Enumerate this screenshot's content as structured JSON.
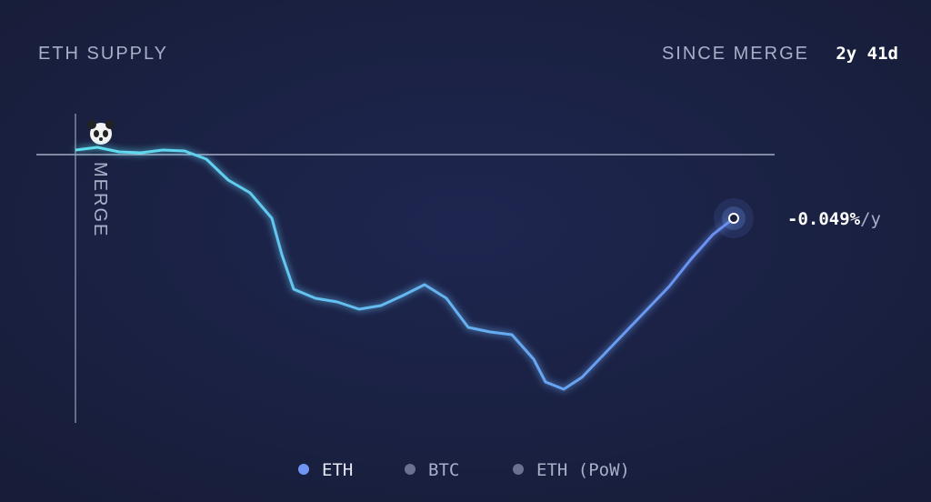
{
  "chart_data": {
    "type": "line",
    "title": "ETH SUPPLY",
    "since_label": "SINCE MERGE",
    "since_value": "2y 41d",
    "marker_label": "MERGE",
    "end_label": "-0.049%",
    "end_label_unit": "/y",
    "x": [
      0,
      24,
      48,
      72,
      96,
      120,
      144,
      168,
      192,
      216,
      227,
      240,
      264,
      288,
      312,
      336,
      360,
      384,
      408,
      432,
      456,
      480,
      504,
      517,
      537,
      557,
      581,
      605,
      629,
      653,
      677,
      701,
      724
    ],
    "xlim": [
      0,
      724
    ],
    "ylim": [
      -295,
      45
    ],
    "series": [
      {
        "name": "ETH",
        "color": "#6f96f5",
        "line_colors": [
          "#5fe0ef",
          "#6a8ef2"
        ],
        "values": [
          5,
          8,
          3,
          2,
          5,
          4,
          -5,
          -28,
          -42,
          -70,
          -110,
          -148,
          -158,
          -162,
          -170,
          -166,
          -155,
          -143,
          -158,
          -190,
          -195,
          -198,
          -225,
          -250,
          -258,
          -245,
          -220,
          -195,
          -170,
          -145,
          -115,
          -88,
          -70
        ]
      },
      {
        "name": "BTC",
        "color": "#6b7190"
      },
      {
        "name": "ETH (PoW)",
        "color": "#6b7190"
      }
    ]
  }
}
